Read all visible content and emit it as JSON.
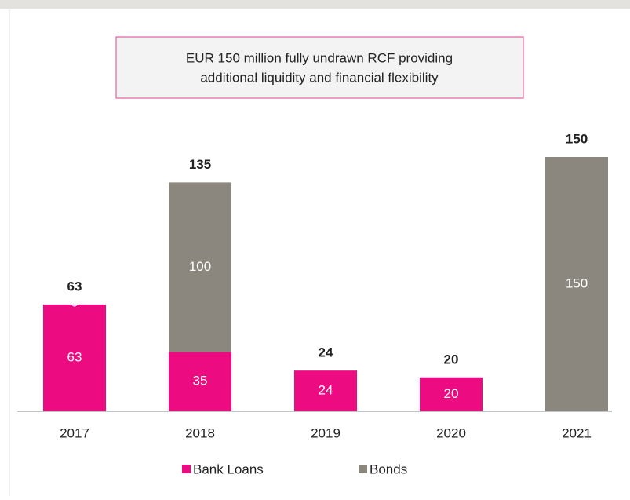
{
  "chart_data": {
    "type": "stacked-bar",
    "annotation": [
      "EUR 150 million fully undrawn RCF providing",
      "additional liquidity and financial flexibility"
    ],
    "categories": [
      "2017",
      "2018",
      "2019",
      "2020",
      "2021"
    ],
    "series": [
      {
        "name": "Bank Loans",
        "color": "#ec0b80",
        "values": [
          63,
          35,
          24,
          20,
          null
        ]
      },
      {
        "name": "Bonds",
        "color": "#8c877e",
        "values": [
          0,
          100,
          null,
          null,
          150
        ]
      }
    ],
    "totals": [
      63,
      135,
      24,
      20,
      150
    ],
    "ylim": [
      0,
      150
    ]
  }
}
